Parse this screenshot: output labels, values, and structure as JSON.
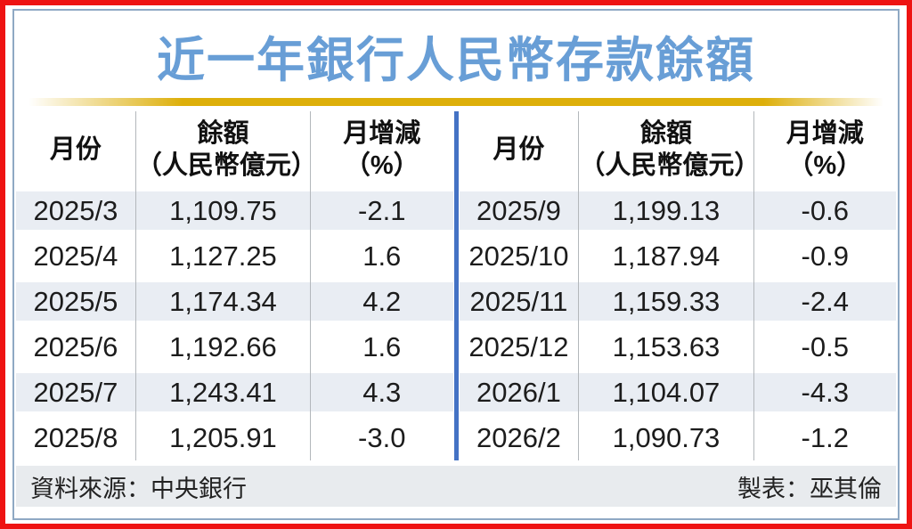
{
  "title": "近一年銀行人民幣存款餘額",
  "colors": {
    "outer_border": "#ee1312",
    "inner_border": "#8fa9c4",
    "title_blue": "#689ed6",
    "gold_rule": "#ddaf0a",
    "row_shade": "#e9edf3",
    "center_divider": "#4472c4",
    "footer_bg": "#e8ebee"
  },
  "table": {
    "headers": {
      "month": "月份",
      "balance_line1": "餘額",
      "balance_line2": "（人民幣億元）",
      "change_line1": "月增減",
      "change_line2": "（%）"
    },
    "left_rows": [
      [
        "2025/3",
        "1,109.75",
        "-2.1"
      ],
      [
        "2025/4",
        "1,127.25",
        "1.6"
      ],
      [
        "2025/5",
        "1,174.34",
        "4.2"
      ],
      [
        "2025/6",
        "1,192.66",
        "1.6"
      ],
      [
        "2025/7",
        "1,243.41",
        "4.3"
      ],
      [
        "2025/8",
        "1,205.91",
        "-3.0"
      ]
    ],
    "right_rows": [
      [
        "2025/9",
        "1,199.13",
        "-0.6"
      ],
      [
        "2025/10",
        "1,187.94",
        "-0.9"
      ],
      [
        "2025/11",
        "1,159.33",
        "-2.4"
      ],
      [
        "2025/12",
        "1,153.63",
        "-0.5"
      ],
      [
        "2026/1",
        "1,104.07",
        "-4.3"
      ],
      [
        "2026/2",
        "1,090.73",
        "-1.2"
      ]
    ]
  },
  "footer": {
    "source": "資料來源：中央銀行",
    "credit": "製表：巫其倫"
  },
  "chart_data": {
    "type": "table",
    "title": "近一年銀行人民幣存款餘額",
    "columns": [
      "月份",
      "餘額（人民幣億元）",
      "月增減（%）"
    ],
    "rows": [
      [
        "2025/3",
        1109.75,
        -2.1
      ],
      [
        "2025/4",
        1127.25,
        1.6
      ],
      [
        "2025/5",
        1174.34,
        4.2
      ],
      [
        "2025/6",
        1192.66,
        1.6
      ],
      [
        "2025/7",
        1243.41,
        4.3
      ],
      [
        "2025/8",
        1205.91,
        -3.0
      ],
      [
        "2025/9",
        1199.13,
        -0.6
      ],
      [
        "2025/10",
        1187.94,
        -0.9
      ],
      [
        "2025/11",
        1159.33,
        -2.4
      ],
      [
        "2025/12",
        1153.63,
        -0.5
      ],
      [
        "2026/1",
        1104.07,
        -4.3
      ],
      [
        "2026/2",
        1090.73,
        -1.2
      ]
    ],
    "layout": "two side-by-side table halves split by vertical blue divider; rows alternate shaded/white",
    "source": "中央銀行",
    "credit": "巫其倫"
  }
}
